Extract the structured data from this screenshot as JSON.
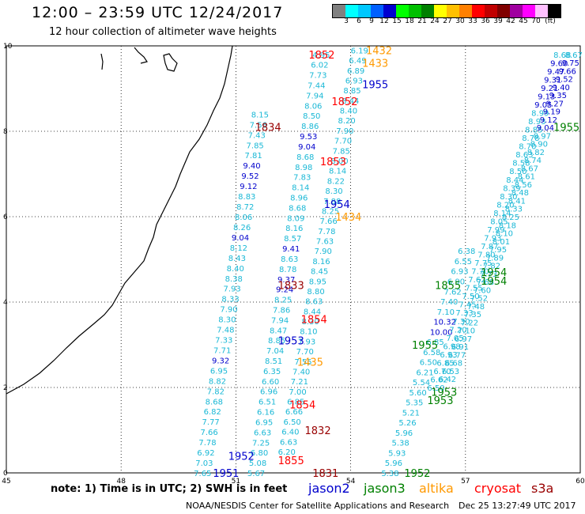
{
  "header": {
    "title": "12:00 – 23:59 UTC 12/24/2017",
    "subtitle": "12 hour collection of altimeter wave heights"
  },
  "colorbar": {
    "colors": [
      "#808080",
      "#00ffff",
      "#00c8ff",
      "#0060ff",
      "#0000d0",
      "#00ff00",
      "#00c000",
      "#008000",
      "#ffff00",
      "#ffc000",
      "#ff8000",
      "#ff0000",
      "#c00000",
      "#800000",
      "#a000a0",
      "#ff00ff",
      "#ffc0ff",
      "#000000"
    ],
    "labels": [
      "3",
      "6",
      "9",
      "12",
      "15",
      "18",
      "21",
      "24",
      "27",
      "30",
      "33",
      "36",
      "39",
      "42",
      "45",
      "70",
      "(ft)"
    ]
  },
  "axes": {
    "x_ticks": [
      "45",
      "48",
      "51",
      "54",
      "57",
      "60"
    ],
    "y_ticks": [
      "0",
      "2",
      "4",
      "6",
      "8",
      "10"
    ]
  },
  "passes": [
    {
      "label": "1852",
      "color": "#ff0000",
      "x": 52.9,
      "y": 9.8
    },
    {
      "label": "1432",
      "color": "#ff9900",
      "x": 54.4,
      "y": 9.9
    },
    {
      "label": "1433",
      "color": "#ff9900",
      "x": 54.3,
      "y": 9.6
    },
    {
      "label": "1955",
      "color": "#0000cc",
      "x": 54.3,
      "y": 9.1
    },
    {
      "label": "1852",
      "color": "#ff0000",
      "x": 53.5,
      "y": 8.7
    },
    {
      "label": "1834",
      "color": "#990000",
      "x": 51.5,
      "y": 8.1
    },
    {
      "label": "1853",
      "color": "#ff0000",
      "x": 53.2,
      "y": 7.3
    },
    {
      "label": "1954",
      "color": "#0000cc",
      "x": 53.3,
      "y": 6.3
    },
    {
      "label": "1434",
      "color": "#ff9900",
      "x": 53.6,
      "y": 6.0
    },
    {
      "label": "1833",
      "color": "#990000",
      "x": 52.1,
      "y": 4.4
    },
    {
      "label": "1854",
      "color": "#ff0000",
      "x": 52.7,
      "y": 3.6
    },
    {
      "label": "1953",
      "color": "#0000cc",
      "x": 52.1,
      "y": 3.1
    },
    {
      "label": "1435",
      "color": "#ff9900",
      "x": 52.6,
      "y": 2.6
    },
    {
      "label": "1854",
      "color": "#ff0000",
      "x": 52.4,
      "y": 1.6
    },
    {
      "label": "1832",
      "color": "#990000",
      "x": 52.8,
      "y": 1.0
    },
    {
      "label": "1952",
      "color": "#0000cc",
      "x": 50.8,
      "y": 0.4
    },
    {
      "label": "1855",
      "color": "#ff0000",
      "x": 52.1,
      "y": 0.3
    },
    {
      "label": "1951",
      "color": "#0000cc",
      "x": 50.4,
      "y": 0.0
    },
    {
      "label": "1831",
      "color": "#990000",
      "x": 53.0,
      "y": 0.0
    },
    {
      "label": "1955",
      "color": "#008000",
      "x": 59.3,
      "y": 8.1
    },
    {
      "label": "1954",
      "color": "#008000",
      "x": 57.4,
      "y": 4.7
    },
    {
      "label": "1954",
      "color": "#008000",
      "x": 57.4,
      "y": 4.5
    },
    {
      "label": "1855",
      "color": "#008000",
      "x": 56.2,
      "y": 4.4
    },
    {
      "label": "1955",
      "color": "#008000",
      "x": 55.6,
      "y": 3.0
    },
    {
      "label": "1953",
      "color": "#008000",
      "x": 56.1,
      "y": 1.9
    },
    {
      "label": "1953",
      "color": "#008000",
      "x": 56.0,
      "y": 1.7
    },
    {
      "label": "1952",
      "color": "#008000",
      "x": 55.4,
      "y": 0.0
    }
  ],
  "tracks": [
    {
      "color": "#1ab8d6",
      "x0": 49.9,
      "y0": 0.0,
      "x1": 51.4,
      "y1": 8.4,
      "values": [
        "7.65",
        "7.03",
        "6.92",
        "7.78",
        "7.66",
        "7.77",
        "6.82",
        "8.68",
        "7.82",
        "8.82",
        "6.95",
        "9.32",
        "7.71",
        "7.33",
        "7.48",
        "8.30",
        "7.90",
        "8.33",
        "7.93",
        "8.38",
        "8.40",
        "8.43",
        "8.12",
        "9.04",
        "8.26",
        "8.06",
        "8.72",
        "8.83",
        "9.12",
        "9.52",
        "9.40",
        "7.81",
        "7.85",
        "7.43",
        "7.56",
        "8.15"
      ]
    },
    {
      "color": "#1ab8d6",
      "x0": 51.3,
      "y0": 0.0,
      "x1": 53.0,
      "y1": 9.8,
      "values": [
        "5.67",
        "5.08",
        "6.80",
        "7.25",
        "6.63",
        "6.95",
        "6.16",
        "6.51",
        "6.96",
        "6.60",
        "6.35",
        "8.51",
        "7.04",
        "8.85",
        "8.47",
        "7.94",
        "7.86",
        "8.25",
        "9.24",
        "9.37",
        "8.78",
        "8.63",
        "9.41",
        "8.57",
        "8.16",
        "8.09",
        "8.68",
        "8.96",
        "8.14",
        "7.83",
        "8.98",
        "8.68",
        "9.04",
        "9.53",
        "8.86",
        "8.50",
        "8.06",
        "7.94",
        "7.44",
        "7.73",
        "6.02",
        "4.95"
      ]
    },
    {
      "color": "#1ab8d6",
      "x0": 52.1,
      "y0": 0.5,
      "x1": 54.0,
      "y1": 9.9,
      "values": [
        "6.20",
        "6.63",
        "6.40",
        "6.50",
        "6.66",
        "6.85",
        "7.00",
        "7.21",
        "7.40",
        "7.55",
        "7.70",
        "7.93",
        "8.10",
        "8.30",
        "8.44",
        "8.63",
        "8.80",
        "8.95",
        "8.45",
        "8.16",
        "7.90",
        "7.63",
        "7.78",
        "7.66",
        "8.25",
        "7.88",
        "8.30",
        "8.22",
        "8.14",
        "8.00",
        "7.85",
        "7.70",
        "7.90",
        "8.20",
        "8.40",
        "8.44",
        "8.85",
        "6.93",
        "6.89",
        "6.49",
        "6.19"
      ]
    },
    {
      "color": "#1ab8d6",
      "x0": 54.8,
      "y0": 0.0,
      "x1": 56.8,
      "y1": 5.2,
      "values": [
        "5.38",
        "5.96",
        "5.93",
        "5.38",
        "5.96",
        "5.26",
        "5.21",
        "5.35",
        "5.60",
        "5.54",
        "6.21",
        "6.50",
        "6.58",
        "6.85",
        "10.00",
        "10.32",
        "7.10",
        "7.40",
        "7.62",
        "6.90",
        "6.93",
        "6.55",
        "6.38"
      ]
    },
    {
      "color": "#1ab8d6",
      "x0": 56.0,
      "y0": 2.0,
      "x1": 59.3,
      "y1": 9.8,
      "values": [
        "6.50",
        "6.62",
        "6.70",
        "6.85",
        "6.93",
        "6.98",
        "7.05",
        "7.20",
        "7.30",
        "7.33",
        "7.45",
        "7.50",
        "7.55",
        "7.62",
        "7.70",
        "7.75",
        "7.80",
        "7.87",
        "7.93",
        "7.99",
        "8.05",
        "8.14",
        "8.20",
        "8.30",
        "8.39",
        "8.44",
        "8.50",
        "8.58",
        "8.63",
        "8.70",
        "8.78",
        "8.85",
        "8.93",
        "8.99",
        "9.05",
        "9.13",
        "9.21",
        "9.31",
        "9.47",
        "9.60",
        "8.68"
      ]
    },
    {
      "color": "#1ab8d6",
      "x0": 56.3,
      "y0": 2.2,
      "x1": 59.6,
      "y1": 9.8,
      "values": [
        "6.42",
        "6.53",
        "6.68",
        "6.77",
        "6.91",
        "6.97",
        "7.10",
        "7.22",
        "7.35",
        "7.48",
        "7.52",
        "7.60",
        "7.68",
        "7.73",
        "7.82",
        "7.89",
        "7.95",
        "8.01",
        "8.10",
        "8.18",
        "8.25",
        "8.33",
        "8.41",
        "8.48",
        "8.56",
        "8.61",
        "8.67",
        "8.74",
        "8.82",
        "8.90",
        "8.97",
        "9.04",
        "9.12",
        "9.19",
        "9.27",
        "9.35",
        "9.40",
        "9.52",
        "9.66",
        "9.75",
        "8.67"
      ]
    }
  ],
  "footer": {
    "note": "note: 1) Time is in UTC; 2) SWH is in feet",
    "missions": [
      {
        "name": "jason2",
        "color": "#0000cc"
      },
      {
        "name": "jason3",
        "color": "#008000"
      },
      {
        "name": "altika",
        "color": "#ff9900"
      },
      {
        "name": "cryosat",
        "color": "#ff0000"
      },
      {
        "name": "s3a",
        "color": "#990000"
      }
    ],
    "credit": "NOAA/NESDIS Center for Satellite Applications and Research",
    "timestamp": "Dec 25 13:27:49 UTC 2017"
  }
}
